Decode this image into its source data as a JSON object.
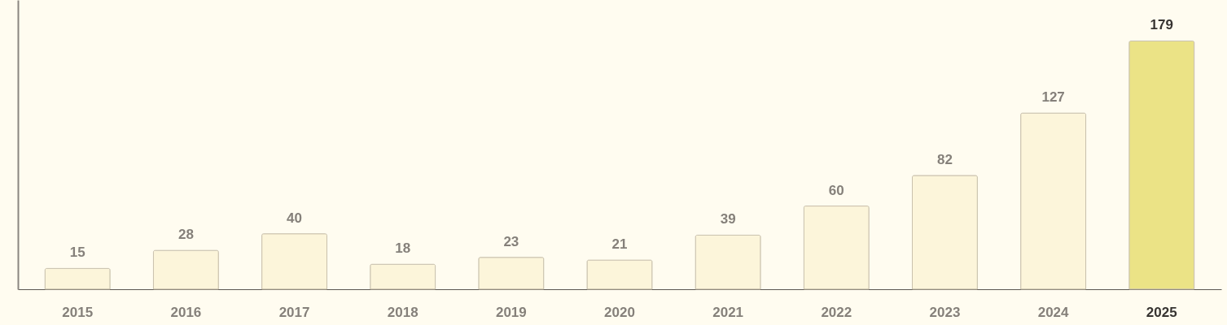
{
  "chart_data": {
    "type": "bar",
    "categories": [
      "2015",
      "2016",
      "2017",
      "2018",
      "2019",
      "2020",
      "2021",
      "2022",
      "2023",
      "2024",
      "2025"
    ],
    "values": [
      15,
      28,
      40,
      18,
      23,
      21,
      39,
      60,
      82,
      127,
      179
    ],
    "colors": [
      "#fcf5da",
      "#fcf5da",
      "#fcf5da",
      "#fcf5da",
      "#fcf5da",
      "#fcf5da",
      "#fcf5da",
      "#fcf5da",
      "#fcf5da",
      "#fcf5da",
      "#ebe386"
    ],
    "data_labels": true,
    "grid": false,
    "tick_labels": "x"
  }
}
